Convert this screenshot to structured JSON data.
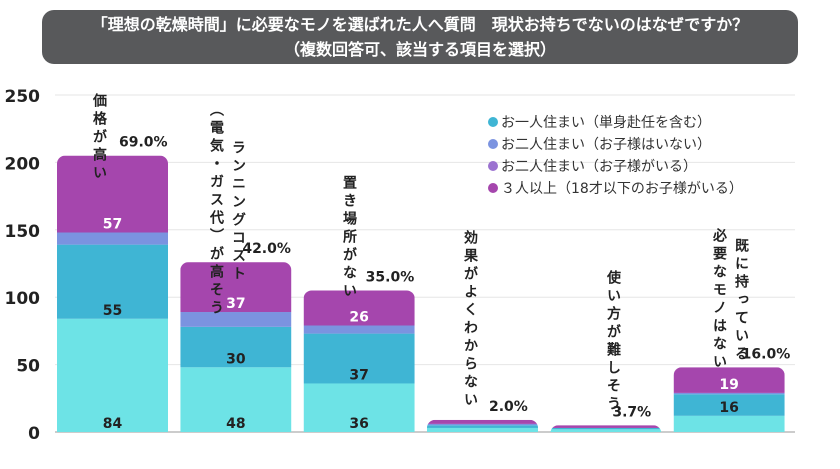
{
  "title": {
    "line1": "「理想の乾燥時間」に必要なモノを選ばれた人へ質問　現状お持ちでないのはなぜですか？",
    "line2": "（複数回答可、該当する項目を選択）"
  },
  "chart_data": {
    "type": "bar",
    "stacked": true,
    "ylim": [
      0,
      250
    ],
    "yticks": [
      "0",
      "50",
      "100",
      "150",
      "200",
      "250"
    ],
    "grid": true,
    "legend_position": "top-right",
    "categories": [
      [
        "価格が高い"
      ],
      [
        "（電気・ガス代）が高そう",
        "ランニングコスト"
      ],
      [
        "置き場所がない"
      ],
      [
        "効果がよくわからない"
      ],
      [
        "使い方が難しそう"
      ],
      [
        "必要なモノはない",
        "既に持っている"
      ]
    ],
    "percent_labels": [
      "69.0%",
      "42.0%",
      "35.0%",
      "2.0%",
      "3.7%",
      "16.0%"
    ],
    "series": [
      {
        "name": "お一人住まい（単身赴任を含む）",
        "color": "#6de3e6",
        "legend_color": "#3fb5d4",
        "values": [
          84,
          48,
          36,
          3,
          2,
          12
        ],
        "labels": [
          "84",
          "48",
          "36",
          "",
          "",
          ""
        ]
      },
      {
        "name": "お二人住まい（お子様はいない）",
        "color": "#3fb5d4",
        "legend_color": "#7b93e0",
        "values": [
          55,
          30,
          37,
          2,
          1,
          16
        ],
        "labels": [
          "55",
          "30",
          "37",
          "",
          "",
          "16"
        ]
      },
      {
        "name": "お二人住まい（お子様がいる）",
        "color": "#7b93e0",
        "legend_color": "#9b72d0",
        "values": [
          9,
          11,
          6,
          1,
          0,
          1
        ],
        "labels": [
          "",
          "",
          "",
          "",
          "",
          ""
        ]
      },
      {
        "name": "３人以上（18才以下のお子様がいる）",
        "color": "#a546ad",
        "legend_color": "#a546ad",
        "values": [
          57,
          37,
          26,
          3,
          2,
          19
        ],
        "labels": [
          "57",
          "37",
          "26",
          "",
          "",
          "19"
        ]
      }
    ]
  }
}
